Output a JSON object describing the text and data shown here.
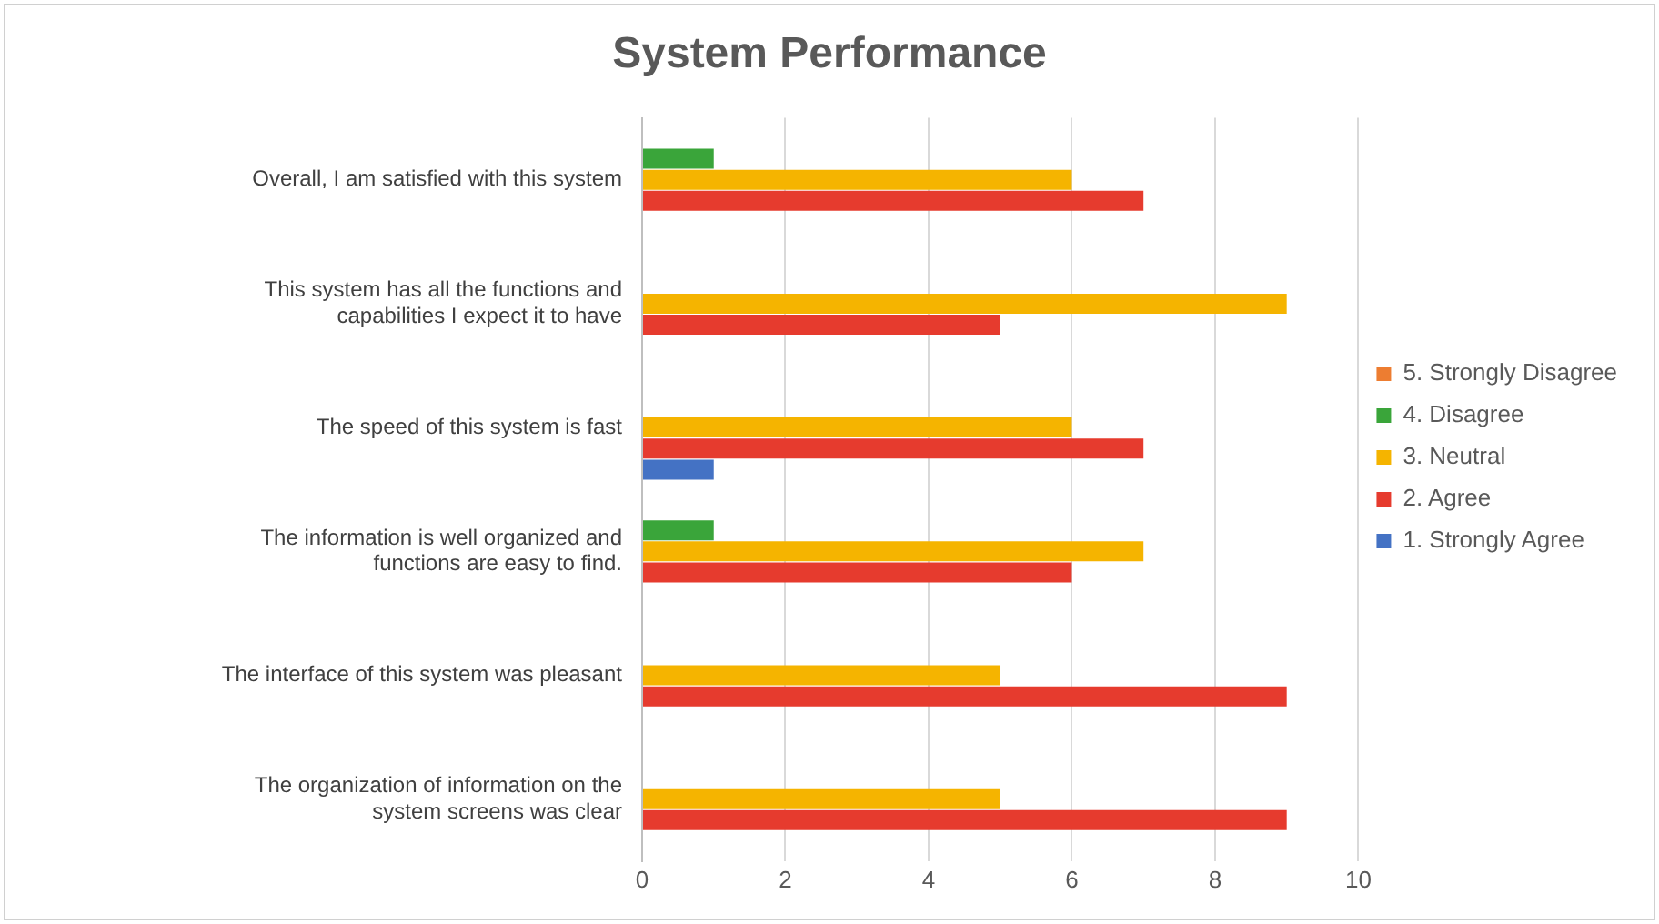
{
  "chart_data": {
    "type": "bar",
    "orientation": "horizontal",
    "title": "System Performance",
    "categories": [
      "Overall, I am satisfied with this system",
      "This system has all the functions and capabilities I expect it to have",
      "The speed of this system is fast",
      "The information is well organized and functions are easy to find.",
      "The interface of this system was pleasant",
      "The organization of information on the system screens was clear"
    ],
    "series": [
      {
        "name": "5. Strongly Disagree",
        "color": "#ed7d31",
        "values": [
          0,
          0,
          0,
          0,
          0,
          0
        ]
      },
      {
        "name": "4. Disagree",
        "color": "#3aa53a",
        "values": [
          1,
          0,
          0,
          1,
          0,
          0
        ]
      },
      {
        "name": "3. Neutral",
        "color": "#f5b400",
        "values": [
          6,
          9,
          6,
          7,
          5,
          5
        ]
      },
      {
        "name": "2. Agree",
        "color": "#e63b2e",
        "values": [
          7,
          5,
          7,
          6,
          9,
          9
        ]
      },
      {
        "name": "1. Strongly Agree",
        "color": "#4472c4",
        "values": [
          0,
          0,
          1,
          0,
          0,
          0
        ]
      }
    ],
    "xlim": [
      0,
      10
    ],
    "xticks": [
      0,
      2,
      4,
      6,
      8,
      10
    ],
    "grid": "x",
    "legend": "right"
  }
}
